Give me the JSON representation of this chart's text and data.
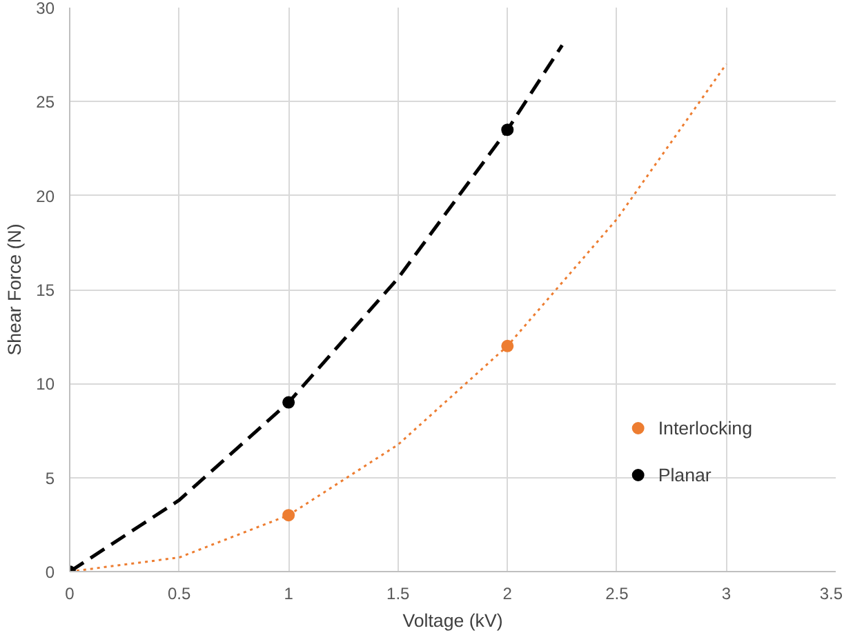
{
  "chart_data": {
    "type": "scatter",
    "xlabel": "Voltage (kV)",
    "ylabel": "Shear Force (N)",
    "xlim": [
      0,
      3.5
    ],
    "xticks": [
      0,
      0.5,
      1,
      1.5,
      2,
      2.5,
      3,
      3.5
    ],
    "ylim": [
      0,
      30
    ],
    "yticks": [
      0,
      5,
      10,
      15,
      20,
      25,
      30
    ],
    "grid": true,
    "legend": "bottom right",
    "series": [
      {
        "name": "Interlocking",
        "color": "#ed7d31",
        "x": [
          1,
          2
        ],
        "values": [
          3,
          12
        ],
        "marker": "circle"
      },
      {
        "name": "Planar",
        "color": "#000000",
        "x": [
          0,
          1,
          2
        ],
        "values": [
          0,
          9,
          23.5
        ],
        "marker": "circle"
      },
      {
        "type": "line",
        "line_style": "dotted",
        "color": "#ed7d31",
        "x": [
          0,
          0.5,
          1,
          1.5,
          2,
          2.5,
          3
        ],
        "values": [
          0,
          0.75,
          3,
          6.75,
          12,
          18.75,
          27
        ]
      },
      {
        "type": "line",
        "line_style": "dashed",
        "color": "#000000",
        "x": [
          0,
          0.5,
          1,
          1.5,
          2,
          2.25
        ],
        "values": [
          0,
          3.8,
          9,
          15.6,
          23.5,
          28
        ]
      }
    ]
  }
}
